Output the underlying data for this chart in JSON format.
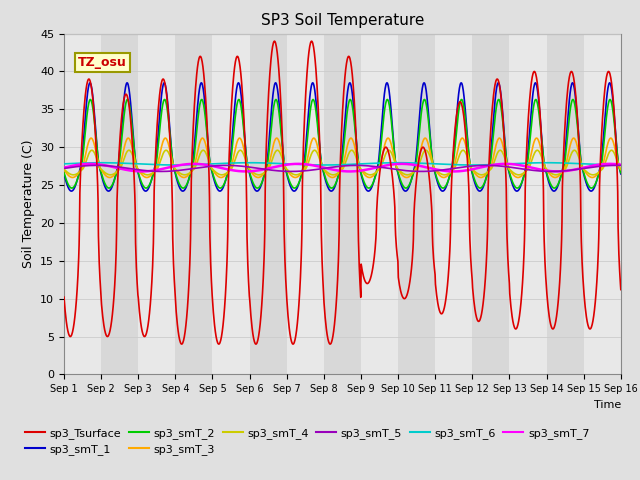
{
  "title": "SP3 Soil Temperature",
  "xlabel": "Time",
  "ylabel": "Soil Temperature (C)",
  "ylim": [
    0,
    45
  ],
  "x_tick_labels": [
    "Sep 1",
    "Sep 2",
    "Sep 3",
    "Sep 4",
    "Sep 5",
    "Sep 6",
    "Sep 7",
    "Sep 8",
    "Sep 9",
    "Sep 10",
    "Sep 11",
    "Sep 12",
    "Sep 13",
    "Sep 14",
    "Sep 15",
    "Sep 16"
  ],
  "tz_label": "TZ_osu",
  "series_order": [
    "sp3_Tsurface",
    "sp3_smT_1",
    "sp3_smT_2",
    "sp3_smT_3",
    "sp3_smT_4",
    "sp3_smT_5",
    "sp3_smT_6",
    "sp3_smT_7"
  ],
  "colors": {
    "sp3_Tsurface": "#dd0000",
    "sp3_smT_1": "#0000cc",
    "sp3_smT_2": "#00cc00",
    "sp3_smT_3": "#ffaa00",
    "sp3_smT_4": "#cccc00",
    "sp3_smT_5": "#9900bb",
    "sp3_smT_6": "#00cccc",
    "sp3_smT_7": "#ff00ff"
  },
  "lw": 1.2,
  "fig_bg": "#e0e0e0",
  "plot_bg": "#f5f5f5",
  "band_colors": [
    "#e8e8e8",
    "#d8d8d8"
  ],
  "yticks": [
    0,
    5,
    10,
    15,
    20,
    25,
    30,
    35,
    40,
    45
  ]
}
